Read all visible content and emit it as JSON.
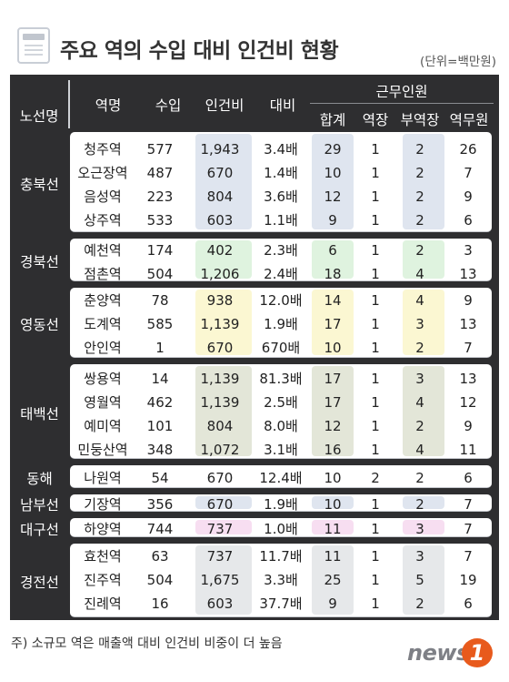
{
  "title": "주요 역의 수입 대비 인건비 현황",
  "unit": "(단위=백만원)",
  "header": {
    "line": "노선명",
    "station": "역명",
    "revenue": "수입",
    "labor": "인건비",
    "ratio": "대비",
    "staff_group": "근무인원",
    "total": "합계",
    "stationmaster": "역장",
    "deputy": "부역장",
    "staff": "역무원"
  },
  "colors": {
    "table_bg": "#2e2e30",
    "card_bg": "#ffffff",
    "band_line": "#c4c7cc",
    "highlight_blue": "#dfe5ef",
    "highlight_green": "#dff3df",
    "highlight_yellow": "#fbf7d2",
    "highlight_olive": "#e3e6d8",
    "highlight_pink": "#f7def1",
    "highlight_gray": "#e6e8ea",
    "logo_orange": "#e85a1c"
  },
  "groups": [
    {
      "line": "충북선",
      "highlight": "blue",
      "rows": [
        {
          "station": "청주역",
          "revenue": "577",
          "labor": "1,943",
          "ratio": "3.4배",
          "total": "29",
          "stationmaster": "1",
          "deputy": "2",
          "staff": "26"
        },
        {
          "station": "오근장역",
          "revenue": "487",
          "labor": "670",
          "ratio": "1.4배",
          "total": "10",
          "stationmaster": "1",
          "deputy": "2",
          "staff": "7"
        },
        {
          "station": "음성역",
          "revenue": "223",
          "labor": "804",
          "ratio": "3.6배",
          "total": "12",
          "stationmaster": "1",
          "deputy": "2",
          "staff": "9"
        },
        {
          "station": "상주역",
          "revenue": "533",
          "labor": "603",
          "ratio": "1.1배",
          "total": "9",
          "stationmaster": "1",
          "deputy": "2",
          "staff": "6"
        }
      ]
    },
    {
      "line": "경북선",
      "highlight": "green",
      "rows": [
        {
          "station": "예천역",
          "revenue": "174",
          "labor": "402",
          "ratio": "2.3배",
          "total": "6",
          "stationmaster": "1",
          "deputy": "2",
          "staff": "3"
        },
        {
          "station": "점촌역",
          "revenue": "504",
          "labor": "1,206",
          "ratio": "2.4배",
          "total": "18",
          "stationmaster": "1",
          "deputy": "4",
          "staff": "13"
        }
      ]
    },
    {
      "line": "영동선",
      "highlight": "yellow",
      "rows": [
        {
          "station": "춘양역",
          "revenue": "78",
          "labor": "938",
          "ratio": "12.0배",
          "total": "14",
          "stationmaster": "1",
          "deputy": "4",
          "staff": "9"
        },
        {
          "station": "도계역",
          "revenue": "585",
          "labor": "1,139",
          "ratio": "1.9배",
          "total": "17",
          "stationmaster": "1",
          "deputy": "3",
          "staff": "13"
        },
        {
          "station": "안인역",
          "revenue": "1",
          "labor": "670",
          "ratio": "670배",
          "total": "10",
          "stationmaster": "1",
          "deputy": "2",
          "staff": "7"
        }
      ]
    },
    {
      "line": "태백선",
      "highlight": "olive",
      "rows": [
        {
          "station": "쌍용역",
          "revenue": "14",
          "labor": "1,139",
          "ratio": "81.3배",
          "total": "17",
          "stationmaster": "1",
          "deputy": "3",
          "staff": "13"
        },
        {
          "station": "영월역",
          "revenue": "462",
          "labor": "1,139",
          "ratio": "2.5배",
          "total": "17",
          "stationmaster": "1",
          "deputy": "4",
          "staff": "12"
        },
        {
          "station": "예미역",
          "revenue": "101",
          "labor": "804",
          "ratio": "8.0배",
          "total": "12",
          "stationmaster": "1",
          "deputy": "2",
          "staff": "9"
        },
        {
          "station": "민둥산역",
          "revenue": "348",
          "labor": "1,072",
          "ratio": "3.1배",
          "total": "16",
          "stationmaster": "1",
          "deputy": "4",
          "staff": "11"
        }
      ]
    },
    {
      "line": "동해",
      "highlight": "none",
      "rows": [
        {
          "station": "나원역",
          "revenue": "54",
          "labor": "670",
          "ratio": "12.4배",
          "total": "10",
          "stationmaster": "2",
          "deputy": "2",
          "staff": "6"
        }
      ]
    },
    {
      "line": "남부선",
      "highlight": "blue",
      "rows": [
        {
          "station": "기장역",
          "revenue": "356",
          "labor": "670",
          "ratio": "1.9배",
          "total": "10",
          "stationmaster": "1",
          "deputy": "2",
          "staff": "7"
        }
      ]
    },
    {
      "line": "대구선",
      "highlight": "pink",
      "rows": [
        {
          "station": "하양역",
          "revenue": "744",
          "labor": "737",
          "ratio": "1.0배",
          "total": "11",
          "stationmaster": "1",
          "deputy": "3",
          "staff": "7"
        }
      ]
    },
    {
      "line": "경전선",
      "highlight": "gray",
      "rows": [
        {
          "station": "효천역",
          "revenue": "63",
          "labor": "737",
          "ratio": "11.7배",
          "total": "11",
          "stationmaster": "1",
          "deputy": "3",
          "staff": "7"
        },
        {
          "station": "진주역",
          "revenue": "504",
          "labor": "1,675",
          "ratio": "3.3배",
          "total": "25",
          "stationmaster": "1",
          "deputy": "5",
          "staff": "19"
        },
        {
          "station": "진례역",
          "revenue": "16",
          "labor": "603",
          "ratio": "37.7배",
          "total": "9",
          "stationmaster": "1",
          "deputy": "2",
          "staff": "6"
        }
      ]
    }
  ],
  "footnote": "주) 소규모 역은 매출액 대비 인건비 비중이 더 높음",
  "logo": {
    "text": "news",
    "badge": "1"
  }
}
